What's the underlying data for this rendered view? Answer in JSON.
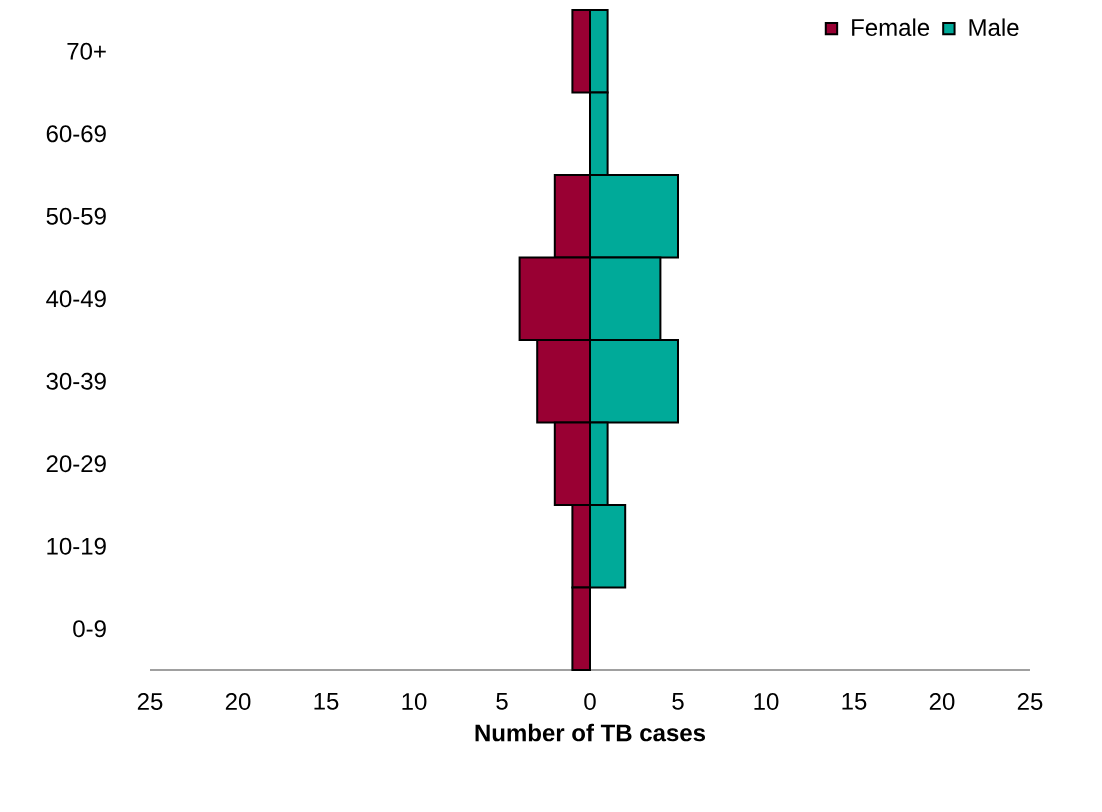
{
  "chart_data": {
    "type": "bar",
    "orientation": "horizontal",
    "stacked": true,
    "xlabel": "Number of TB cases",
    "categories": [
      "70+",
      "60-69",
      "50-59",
      "40-49",
      "30-39",
      "20-29",
      "10-19",
      "0-9"
    ],
    "series": [
      {
        "name": "Female",
        "color": "#990033",
        "values": [
          -1,
          0,
          -2,
          -4,
          -3,
          -2,
          -1,
          -1
        ]
      },
      {
        "name": "Male",
        "color": "#00aa99",
        "values": [
          1,
          1,
          5,
          4,
          5,
          1,
          2,
          0
        ]
      }
    ],
    "xlim": [
      -25,
      25
    ],
    "xticks": [
      {
        "value": -25,
        "label": "25"
      },
      {
        "value": -20,
        "label": "20"
      },
      {
        "value": -15,
        "label": "15"
      },
      {
        "value": -10,
        "label": "10"
      },
      {
        "value": -5,
        "label": "5"
      },
      {
        "value": 0,
        "label": "0"
      },
      {
        "value": 5,
        "label": "5"
      },
      {
        "value": 10,
        "label": "10"
      },
      {
        "value": 15,
        "label": "15"
      },
      {
        "value": 20,
        "label": "20"
      },
      {
        "value": 25,
        "label": "25"
      }
    ],
    "legend": "top right",
    "grid": false
  }
}
